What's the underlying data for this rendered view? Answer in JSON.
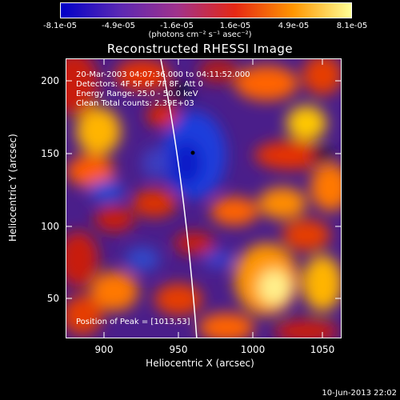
{
  "colorbar": {
    "ticks": [
      "-8.1e-05",
      "-4.9e-05",
      "-1.6e-05",
      "1.6e-05",
      "4.9e-05",
      "8.1e-05"
    ],
    "units": "(photons cm⁻² s⁻¹ asec⁻²)",
    "colors": [
      "#0000c8",
      "#5a28b4",
      "#a0328c",
      "#e62814",
      "#ff9600",
      "#ffff96"
    ]
  },
  "title": "Reconstructed RHESSI Image",
  "annotations": {
    "time": "20-Mar-2003 04:07:36.000 to 04:11:52.000",
    "detectors": "Detectors: 4F 5F 6F 7F 8F, Att 0",
    "energy": "Energy Range: 25.0 - 50.0 keV",
    "clean": "Clean     Total counts: 2.39E+03",
    "peak": "Position of Peak = [1013,53]"
  },
  "axes": {
    "xlabel": "Heliocentric X (arcsec)",
    "ylabel": "Heliocentric Y (arcsec)",
    "xticks": [
      "900",
      "950",
      "1000",
      "1050"
    ],
    "yticks": [
      "200",
      "150",
      "100",
      "50"
    ]
  },
  "timestamp": "10-Jun-2013 22:02"
}
